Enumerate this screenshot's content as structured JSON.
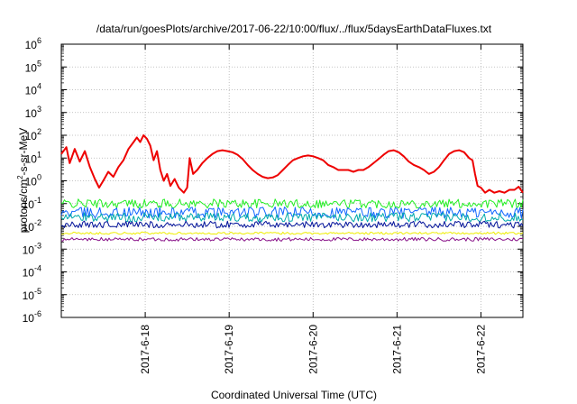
{
  "chart_data": {
    "type": "line",
    "title": "/data/run/goesPlots/archive/2017-06-22/10:00/flux/../flux/5daysEarthDataFluxes.txt",
    "xlabel": "Coordinated Universal Time (UTC)",
    "ylabel": {
      "prefix": "protons/cm",
      "sup": "2",
      "suffix": "-s-sr-MeV"
    },
    "x_range_days_after_2017_6_17": [
      0.0,
      5.5
    ],
    "x_ticks": [
      {
        "label": "2017-6-18",
        "day": 1
      },
      {
        "label": "2017-6-19",
        "day": 2
      },
      {
        "label": "2017-6-20",
        "day": 3
      },
      {
        "label": "2017-6-21",
        "day": 4
      },
      {
        "label": "2017-6-22",
        "day": 5
      }
    ],
    "y_scale": "log",
    "y_ticks": [
      {
        "base": "10",
        "exp": "6"
      },
      {
        "base": "10",
        "exp": "5"
      },
      {
        "base": "10",
        "exp": "4"
      },
      {
        "base": "10",
        "exp": "3"
      },
      {
        "base": "10",
        "exp": "2"
      },
      {
        "base": "10",
        "exp": "1"
      },
      {
        "base": "10",
        "exp": "0"
      },
      {
        "base": "10",
        "exp": "-1"
      },
      {
        "base": "10",
        "exp": "-2"
      },
      {
        "base": "10",
        "exp": "-3"
      },
      {
        "base": "10",
        "exp": "-4"
      },
      {
        "base": "10",
        "exp": "-5"
      },
      {
        "base": "10",
        "exp": "-6"
      }
    ],
    "ylim_log10": [
      -6,
      6
    ],
    "grid": true,
    "legend": "none",
    "series": [
      {
        "color": "#ee0000",
        "width": 2,
        "points": [
          [
            0.0,
            15
          ],
          [
            0.06,
            30
          ],
          [
            0.1,
            6
          ],
          [
            0.16,
            25
          ],
          [
            0.22,
            7
          ],
          [
            0.28,
            20
          ],
          [
            0.34,
            4
          ],
          [
            0.4,
            1.2
          ],
          [
            0.45,
            0.5
          ],
          [
            0.5,
            1.0
          ],
          [
            0.56,
            2.5
          ],
          [
            0.62,
            1.5
          ],
          [
            0.68,
            4
          ],
          [
            0.74,
            8
          ],
          [
            0.8,
            25
          ],
          [
            0.86,
            50
          ],
          [
            0.9,
            80
          ],
          [
            0.94,
            50
          ],
          [
            0.98,
            100
          ],
          [
            1.02,
            70
          ],
          [
            1.06,
            35
          ],
          [
            1.1,
            8
          ],
          [
            1.14,
            20
          ],
          [
            1.18,
            3
          ],
          [
            1.22,
            1
          ],
          [
            1.26,
            2
          ],
          [
            1.3,
            0.6
          ],
          [
            1.35,
            1.2
          ],
          [
            1.4,
            0.5
          ],
          [
            1.46,
            0.3
          ],
          [
            1.5,
            0.5
          ],
          [
            1.53,
            10
          ],
          [
            1.57,
            2
          ],
          [
            1.62,
            3
          ],
          [
            1.68,
            6
          ],
          [
            1.74,
            10
          ],
          [
            1.8,
            15
          ],
          [
            1.86,
            20
          ],
          [
            1.92,
            22
          ],
          [
            1.98,
            20
          ],
          [
            2.04,
            18
          ],
          [
            2.1,
            14
          ],
          [
            2.16,
            9
          ],
          [
            2.22,
            5
          ],
          [
            2.28,
            3
          ],
          [
            2.34,
            2
          ],
          [
            2.4,
            1.5
          ],
          [
            2.46,
            1.3
          ],
          [
            2.52,
            1.4
          ],
          [
            2.58,
            1.8
          ],
          [
            2.64,
            3
          ],
          [
            2.7,
            5
          ],
          [
            2.76,
            8
          ],
          [
            2.82,
            10
          ],
          [
            2.88,
            12
          ],
          [
            2.94,
            13
          ],
          [
            3.0,
            12
          ],
          [
            3.06,
            10
          ],
          [
            3.12,
            8
          ],
          [
            3.18,
            5
          ],
          [
            3.24,
            4
          ],
          [
            3.3,
            3
          ],
          [
            3.36,
            3
          ],
          [
            3.42,
            3
          ],
          [
            3.48,
            2.5
          ],
          [
            3.54,
            3
          ],
          [
            3.6,
            3
          ],
          [
            3.66,
            4
          ],
          [
            3.72,
            6
          ],
          [
            3.78,
            9
          ],
          [
            3.84,
            14
          ],
          [
            3.9,
            20
          ],
          [
            3.96,
            22
          ],
          [
            4.02,
            18
          ],
          [
            4.08,
            12
          ],
          [
            4.14,
            7
          ],
          [
            4.2,
            5
          ],
          [
            4.26,
            4
          ],
          [
            4.32,
            3
          ],
          [
            4.38,
            2
          ],
          [
            4.44,
            2.5
          ],
          [
            4.5,
            4
          ],
          [
            4.56,
            8
          ],
          [
            4.62,
            15
          ],
          [
            4.68,
            20
          ],
          [
            4.74,
            22
          ],
          [
            4.8,
            18
          ],
          [
            4.86,
            10
          ],
          [
            4.9,
            8
          ],
          [
            4.93,
            2
          ],
          [
            4.96,
            0.6
          ],
          [
            5.0,
            0.5
          ],
          [
            5.05,
            0.3
          ],
          [
            5.1,
            0.4
          ],
          [
            5.16,
            0.3
          ],
          [
            5.22,
            0.35
          ],
          [
            5.28,
            0.3
          ],
          [
            5.34,
            0.4
          ],
          [
            5.4,
            0.4
          ],
          [
            5.45,
            0.55
          ],
          [
            5.5,
            0.3
          ]
        ]
      },
      {
        "color": "#22ee22",
        "width": 1,
        "center": 0.1,
        "amplitude_log10": 0.2,
        "samples": 300
      },
      {
        "color": "#1166ff",
        "width": 1,
        "center": 0.04,
        "amplitude_log10": 0.25,
        "samples": 300
      },
      {
        "color": "#00aaaa",
        "width": 1,
        "center": 0.025,
        "amplitude_log10": 0.2,
        "samples": 300
      },
      {
        "color": "#001199",
        "width": 1,
        "center": 0.012,
        "amplitude_log10": 0.15,
        "samples": 300
      },
      {
        "color": "#eeee00",
        "width": 1,
        "center": 0.005,
        "amplitude_log10": 0.05,
        "samples": 300
      },
      {
        "color": "#881188",
        "width": 1,
        "center": 0.0027,
        "amplitude_log10": 0.08,
        "samples": 300
      }
    ]
  }
}
